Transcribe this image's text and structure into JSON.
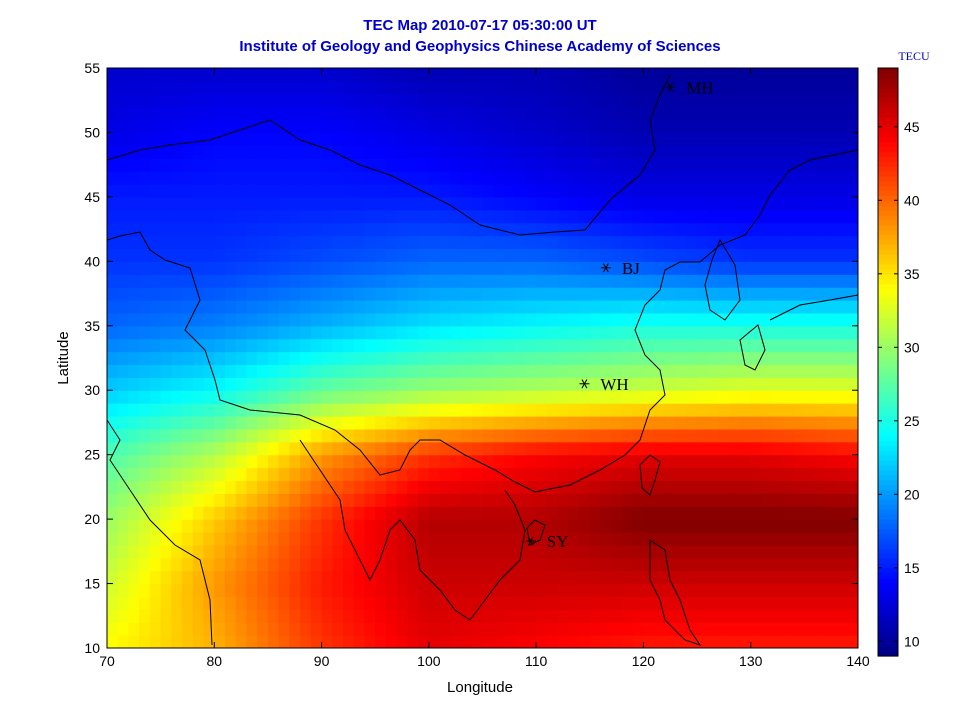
{
  "header": {
    "title": "TEC Map 2010-07-17 05:30:00 UT",
    "subtitle": "Institute of Geology and Geophysics Chinese Academy of Sciences"
  },
  "chart_data": {
    "type": "heatmap",
    "title": "TEC Map 2010-07-17 05:30:00 UT",
    "subtitle": "Institute of Geology and Geophysics Chinese Academy of Sciences",
    "xlabel": "Longitude",
    "ylabel": "Latitude",
    "xlim": [
      70,
      140
    ],
    "ylim": [
      10,
      55
    ],
    "xticks": [
      70,
      80,
      90,
      100,
      110,
      120,
      130,
      140
    ],
    "yticks": [
      10,
      15,
      20,
      25,
      30,
      35,
      40,
      45,
      50,
      55
    ],
    "colorbar": {
      "label": "TECU",
      "range": [
        9,
        49
      ],
      "ticks": [
        10,
        15,
        20,
        25,
        30,
        35,
        40,
        45
      ],
      "colormap": "jet"
    },
    "grid": false,
    "tec_field": {
      "lon": [
        70,
        80,
        90,
        100,
        110,
        120,
        130,
        140
      ],
      "lat": [
        10,
        15,
        20,
        25,
        30,
        35,
        40,
        45,
        50,
        55
      ],
      "values": [
        [
          34,
          37,
          42,
          45,
          44,
          43,
          43,
          43
        ],
        [
          32,
          38,
          43,
          46,
          46,
          46,
          46,
          46
        ],
        [
          30,
          36,
          42,
          47,
          47,
          49,
          49,
          49
        ],
        [
          27,
          31,
          38,
          42,
          44,
          45,
          45,
          44
        ],
        [
          22,
          24,
          28,
          30,
          31,
          32,
          33,
          33
        ],
        [
          18,
          19,
          21,
          23,
          24,
          25,
          25,
          25
        ],
        [
          16,
          16,
          17,
          18,
          18,
          17,
          16,
          16
        ],
        [
          15,
          15,
          15,
          15,
          14,
          13,
          13,
          13
        ],
        [
          13,
          14,
          14,
          13,
          12,
          11,
          11,
          11
        ],
        [
          12,
          12,
          12,
          11,
          11,
          10,
          10,
          10
        ]
      ]
    },
    "stations": [
      {
        "name": "MH",
        "lon": 122.5,
        "lat": 53.5
      },
      {
        "name": "BJ",
        "lon": 116.5,
        "lat": 39.5
      },
      {
        "name": "WH",
        "lon": 114.5,
        "lat": 30.5
      },
      {
        "name": "SY",
        "lon": 109.5,
        "lat": 18.3
      }
    ]
  }
}
